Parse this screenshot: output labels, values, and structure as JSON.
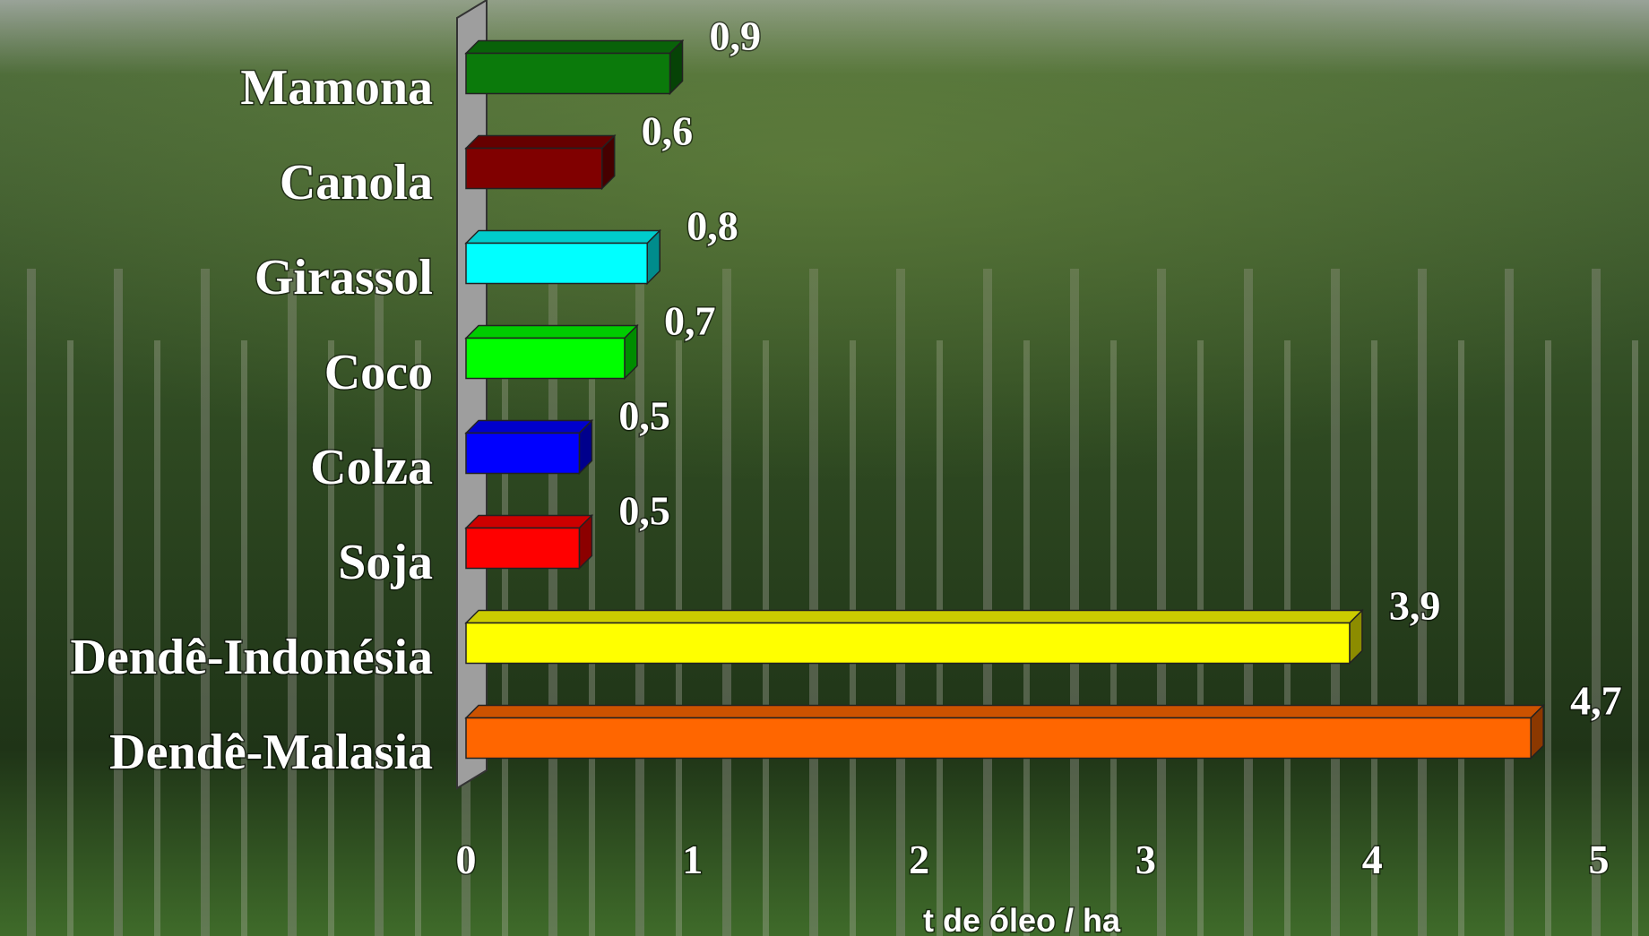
{
  "chart_data": {
    "type": "bar",
    "orientation": "horizontal",
    "categories": [
      "Mamona",
      "Canola",
      "Girassol",
      "Coco",
      "Colza",
      "Soja",
      "Dendê-Indonésia",
      "Dendê-Malasia"
    ],
    "values": [
      0.9,
      0.6,
      0.8,
      0.7,
      0.5,
      0.5,
      3.9,
      4.7
    ],
    "value_labels": [
      "0,9",
      "0,6",
      "0,8",
      "0,7",
      "0,5",
      "0,5",
      "3,9",
      "4,7"
    ],
    "colors": [
      "#0b7a0b",
      "#800000",
      "#00ffff",
      "#00ff00",
      "#0000ff",
      "#ff0000",
      "#ffff00",
      "#ff6600"
    ],
    "xlim": [
      0,
      5
    ],
    "xticks": [
      0,
      1,
      2,
      3,
      4,
      5
    ],
    "xlabel": "t de óleo / ha"
  }
}
